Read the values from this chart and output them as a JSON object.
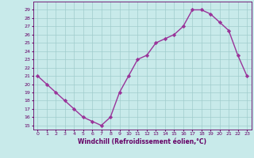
{
  "x": [
    0,
    1,
    2,
    3,
    4,
    5,
    6,
    7,
    8,
    9,
    10,
    11,
    12,
    13,
    14,
    15,
    16,
    17,
    18,
    19,
    20,
    21,
    22,
    23
  ],
  "y": [
    21.0,
    20.0,
    19.0,
    18.0,
    17.0,
    16.0,
    15.5,
    15.0,
    16.0,
    19.0,
    21.0,
    23.0,
    23.5,
    25.0,
    25.5,
    26.0,
    27.0,
    29.0,
    29.0,
    28.5,
    27.5,
    26.5,
    23.5,
    21.0
  ],
  "xlim": [
    -0.5,
    23.5
  ],
  "ylim": [
    14.5,
    30.0
  ],
  "yticks": [
    15,
    16,
    17,
    18,
    19,
    20,
    21,
    22,
    23,
    24,
    25,
    26,
    27,
    28,
    29
  ],
  "xticks": [
    0,
    1,
    2,
    3,
    4,
    5,
    6,
    7,
    8,
    9,
    10,
    11,
    12,
    13,
    14,
    15,
    16,
    17,
    18,
    19,
    20,
    21,
    22,
    23
  ],
  "xlabel": "Windchill (Refroidissement éolien,°C)",
  "line_color": "#993399",
  "marker_color": "#993399",
  "bg_color": "#c8eaea",
  "grid_color": "#a0cccc",
  "axis_label_color": "#660066",
  "tick_color": "#660066",
  "marker": "D",
  "marker_size": 2.2,
  "line_width": 1.0
}
